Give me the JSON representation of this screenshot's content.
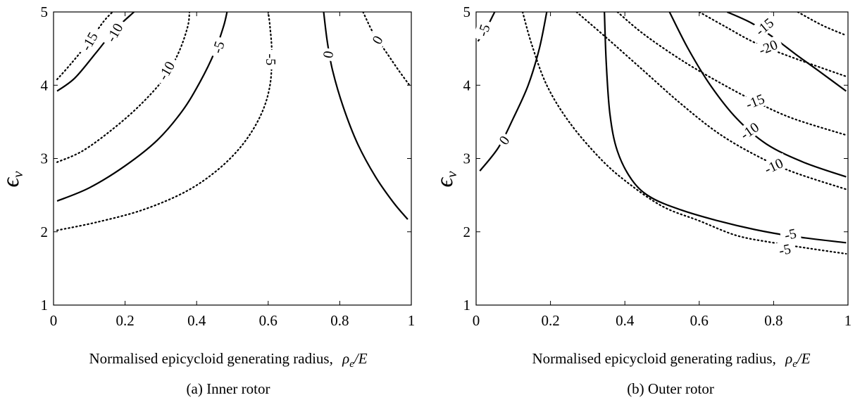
{
  "charts": [
    {
      "id": "a",
      "caption": "(a) Inner rotor",
      "xlabel": "Normalised epicycloid generating radius,",
      "xlabel_symbol": "ρ",
      "xlabel_symbol_sub": "e",
      "xlabel_symbol_tail": "/E",
      "ylabel_symbol": "ϵ",
      "ylabel_sub": "ν",
      "xticks": [
        "0",
        "0.2",
        "0.4",
        "0.6",
        "0.8",
        "1"
      ],
      "yticks": [
        "1",
        "2",
        "3",
        "4",
        "5"
      ]
    },
    {
      "id": "b",
      "caption": "(b) Outer rotor",
      "xlabel": "Normalised epicycloid generating radius,",
      "xlabel_symbol": "ρ",
      "xlabel_symbol_sub": "e",
      "xlabel_symbol_tail": "/E",
      "ylabel_symbol": "ϵ",
      "ylabel_sub": "ν",
      "xticks": [
        "0",
        "0.2",
        "0.4",
        "0.6",
        "0.8",
        "1"
      ],
      "yticks": [
        "1",
        "2",
        "3",
        "4",
        "5"
      ]
    }
  ],
  "chart_data": [
    {
      "type": "contour",
      "xlim": [
        0,
        1
      ],
      "ylim": [
        1,
        5
      ],
      "grid": false,
      "legend": "none",
      "contours": [
        {
          "level": "-15",
          "style": "dotted",
          "points": [
            [
              0.01,
              4.08
            ],
            [
              0.05,
              4.3
            ],
            [
              0.1,
              4.6
            ],
            [
              0.14,
              4.87
            ],
            [
              0.165,
              5.0
            ]
          ],
          "label": {
            "text": "-15",
            "x": 0.1,
            "y": 4.6,
            "angle": -60
          }
        },
        {
          "level": "-10",
          "style": "solid",
          "points": [
            [
              0.01,
              3.92
            ],
            [
              0.06,
              4.1
            ],
            [
              0.12,
              4.45
            ],
            [
              0.17,
              4.75
            ],
            [
              0.225,
              5.0
            ]
          ],
          "label": {
            "text": "-10",
            "x": 0.17,
            "y": 4.72,
            "angle": -60
          }
        },
        {
          "level": "-10",
          "style": "dotted",
          "points": [
            [
              0.01,
              2.95
            ],
            [
              0.08,
              3.1
            ],
            [
              0.16,
              3.38
            ],
            [
              0.24,
              3.72
            ],
            [
              0.31,
              4.1
            ],
            [
              0.35,
              4.45
            ],
            [
              0.375,
              4.8
            ],
            [
              0.38,
              5.0
            ]
          ],
          "label": {
            "text": "-10",
            "x": 0.315,
            "y": 4.2,
            "angle": -60
          }
        },
        {
          "level": "-5",
          "style": "solid",
          "points": [
            [
              0.01,
              2.42
            ],
            [
              0.1,
              2.6
            ],
            [
              0.2,
              2.9
            ],
            [
              0.29,
              3.25
            ],
            [
              0.36,
              3.65
            ],
            [
              0.41,
              4.05
            ],
            [
              0.45,
              4.45
            ],
            [
              0.475,
              4.8
            ],
            [
              0.485,
              5.0
            ]
          ],
          "label": {
            "text": "-5",
            "x": 0.46,
            "y": 4.52,
            "angle": -72
          }
        },
        {
          "level": "-5",
          "style": "dotted",
          "points": [
            [
              0.01,
              2.02
            ],
            [
              0.12,
              2.13
            ],
            [
              0.25,
              2.3
            ],
            [
              0.37,
              2.55
            ],
            [
              0.46,
              2.85
            ],
            [
              0.53,
              3.2
            ],
            [
              0.58,
              3.6
            ],
            [
              0.605,
              4.0
            ],
            [
              0.61,
              4.45
            ],
            [
              0.605,
              4.8
            ],
            [
              0.6,
              5.0
            ]
          ],
          "label": {
            "text": "-5",
            "x": 0.608,
            "y": 4.35,
            "angle": 90
          }
        },
        {
          "level": "0",
          "style": "solid",
          "points": [
            [
              0.755,
              5.0
            ],
            [
              0.765,
              4.6
            ],
            [
              0.78,
              4.2
            ],
            [
              0.81,
              3.7
            ],
            [
              0.85,
              3.2
            ],
            [
              0.9,
              2.75
            ],
            [
              0.95,
              2.4
            ],
            [
              0.99,
              2.17
            ]
          ],
          "label": {
            "text": "0",
            "x": 0.767,
            "y": 4.42,
            "angle": -80
          }
        },
        {
          "level": "0",
          "style": "dotted",
          "points": [
            [
              0.865,
              5.0
            ],
            [
              0.895,
              4.7
            ],
            [
              0.93,
              4.45
            ],
            [
              0.965,
              4.2
            ],
            [
              0.995,
              4.0
            ]
          ],
          "label": {
            "text": "0",
            "x": 0.905,
            "y": 4.62,
            "angle": -60
          }
        }
      ]
    },
    {
      "type": "contour",
      "xlim": [
        0,
        1
      ],
      "ylim": [
        1,
        5
      ],
      "grid": false,
      "legend": "none",
      "contours": [
        {
          "level": "-5",
          "style": "solid",
          "points": [
            [
              0.005,
              4.6
            ],
            [
              0.025,
              4.75
            ],
            [
              0.045,
              4.95
            ],
            [
              0.05,
              5.0
            ]
          ],
          "label": {
            "text": "-5",
            "x": 0.02,
            "y": 4.75,
            "angle": -72
          }
        },
        {
          "level": "0",
          "style": "solid",
          "points": [
            [
              0.01,
              2.83
            ],
            [
              0.06,
              3.15
            ],
            [
              0.1,
              3.55
            ],
            [
              0.14,
              4.0
            ],
            [
              0.17,
              4.5
            ],
            [
              0.19,
              5.0
            ]
          ],
          "label": {
            "text": "0",
            "x": 0.075,
            "y": 3.25,
            "angle": -55
          }
        },
        {
          "level": "-5",
          "style": "dotted",
          "points": [
            [
              0.125,
              5.0
            ],
            [
              0.15,
              4.55
            ],
            [
              0.19,
              4.0
            ],
            [
              0.25,
              3.5
            ],
            [
              0.33,
              3.02
            ],
            [
              0.4,
              2.7
            ],
            [
              0.5,
              2.35
            ],
            [
              0.6,
              2.15
            ],
            [
              0.7,
              1.95
            ],
            [
              0.8,
              1.85
            ],
            [
              0.9,
              1.77
            ],
            [
              0.995,
              1.7
            ]
          ],
          "label": {
            "text": "-5",
            "x": 0.83,
            "y": 1.76,
            "angle": -12
          }
        },
        {
          "level": "-5",
          "style": "solid",
          "points": [
            [
              0.345,
              5.0
            ],
            [
              0.35,
              4.3
            ],
            [
              0.36,
              3.6
            ],
            [
              0.38,
              3.1
            ],
            [
              0.42,
              2.7
            ],
            [
              0.47,
              2.47
            ],
            [
              0.55,
              2.3
            ],
            [
              0.65,
              2.15
            ],
            [
              0.75,
              2.03
            ],
            [
              0.85,
              1.94
            ],
            [
              0.995,
              1.85
            ]
          ],
          "label": {
            "text": "-5",
            "x": 0.845,
            "y": 1.97,
            "angle": -12
          }
        },
        {
          "level": "-10",
          "style": "dotted",
          "points": [
            [
              0.27,
              5.0
            ],
            [
              0.35,
              4.65
            ],
            [
              0.45,
              4.2
            ],
            [
              0.55,
              3.75
            ],
            [
              0.65,
              3.35
            ],
            [
              0.75,
              3.05
            ],
            [
              0.85,
              2.82
            ],
            [
              0.995,
              2.58
            ]
          ],
          "label": {
            "text": "-10",
            "x": 0.8,
            "y": 2.9,
            "angle": -25
          }
        },
        {
          "level": "-10",
          "style": "solid",
          "points": [
            [
              0.52,
              5.0
            ],
            [
              0.57,
              4.5
            ],
            [
              0.63,
              4.0
            ],
            [
              0.7,
              3.55
            ],
            [
              0.78,
              3.2
            ],
            [
              0.88,
              2.95
            ],
            [
              0.995,
              2.75
            ]
          ],
          "label": {
            "text": "-10",
            "x": 0.735,
            "y": 3.38,
            "angle": -35
          }
        },
        {
          "level": "-15",
          "style": "dotted",
          "points": [
            [
              0.38,
              5.0
            ],
            [
              0.45,
              4.7
            ],
            [
              0.55,
              4.35
            ],
            [
              0.65,
              4.05
            ],
            [
              0.75,
              3.78
            ],
            [
              0.85,
              3.55
            ],
            [
              0.995,
              3.32
            ]
          ],
          "label": {
            "text": "-15",
            "x": 0.75,
            "y": 3.78,
            "angle": -22
          }
        },
        {
          "level": "-20",
          "style": "dotted",
          "points": [
            [
              0.6,
              5.0
            ],
            [
              0.67,
              4.8
            ],
            [
              0.75,
              4.58
            ],
            [
              0.85,
              4.38
            ],
            [
              0.995,
              4.12
            ]
          ],
          "label": {
            "text": "-20",
            "x": 0.785,
            "y": 4.52,
            "angle": -22
          }
        },
        {
          "level": "-15",
          "style": "solid",
          "points": [
            [
              0.675,
              5.0
            ],
            [
              0.74,
              4.85
            ],
            [
              0.8,
              4.65
            ],
            [
              0.86,
              4.42
            ],
            [
              0.92,
              4.2
            ],
            [
              0.995,
              3.92
            ]
          ],
          "label": {
            "text": "-15",
            "x": 0.775,
            "y": 4.8,
            "angle": -40
          }
        },
        {
          "level": "-20",
          "style": "dotted",
          "points": [
            [
              0.865,
              5.0
            ],
            [
              0.93,
              4.82
            ],
            [
              0.995,
              4.68
            ]
          ],
          "label": null
        }
      ]
    }
  ]
}
